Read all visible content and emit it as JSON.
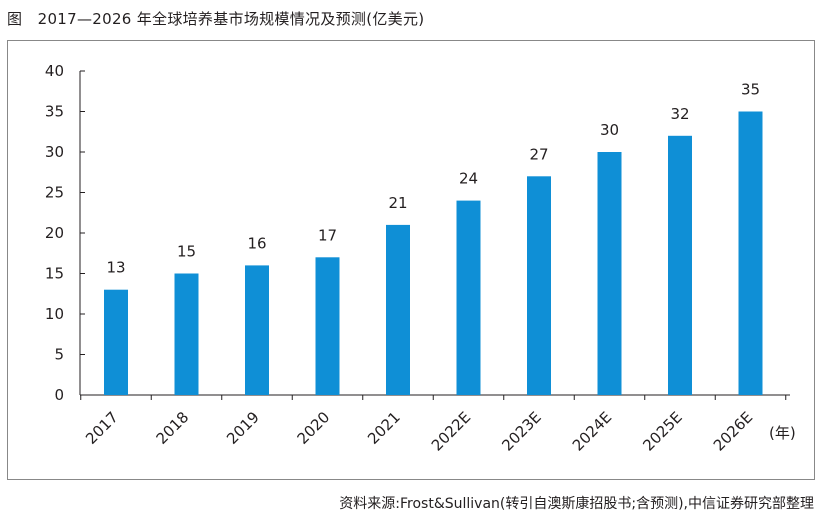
{
  "title": "图　2017—2026 年全球培养基市场规模情况及预测(亿美元)",
  "source": "资料来源:Frost&Sullivan(转引自澳斯康招股书;含预测),中信证券研究部整理",
  "colors": {
    "bar": "#0f8fd6",
    "axis": "#231f20",
    "frame": "#888888"
  },
  "chart_data": {
    "type": "bar",
    "categories": [
      "2017",
      "2018",
      "2019",
      "2020",
      "2021",
      "2022E",
      "2023E",
      "2024E",
      "2025E",
      "2026E"
    ],
    "values": [
      13,
      15,
      16,
      17,
      21,
      24,
      27,
      30,
      32,
      35
    ],
    "labels": [
      "13",
      "15",
      "16",
      "17",
      "21",
      "24",
      "27",
      "30",
      "32",
      "35"
    ],
    "xunit": "(年)",
    "ylim": [
      0,
      40
    ],
    "yticks": [
      0,
      5,
      10,
      15,
      20,
      25,
      30,
      35,
      40
    ],
    "grid": false,
    "legend": "none"
  }
}
